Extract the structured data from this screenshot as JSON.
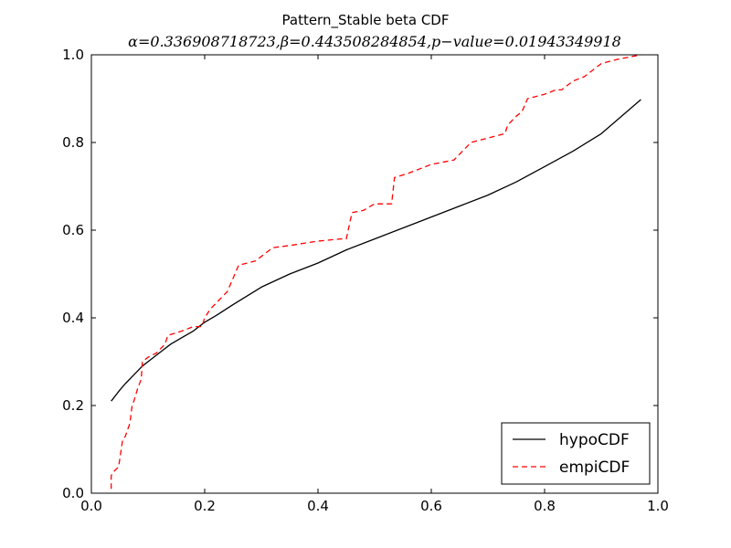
{
  "chart_data": {
    "type": "line",
    "title": "Pattern_Stable beta CDF",
    "subtitle": "α=0.336908718723,β=0.443508284854,p−value=0.01943349918",
    "xlabel": "",
    "ylabel": "",
    "xlim": [
      0.0,
      1.0
    ],
    "ylim": [
      0.0,
      1.0
    ],
    "x_ticks": [
      "0.0",
      "0.2",
      "0.4",
      "0.6",
      "0.8",
      "1.0"
    ],
    "y_ticks": [
      "0.0",
      "0.2",
      "0.4",
      "0.6",
      "0.8",
      "1.0"
    ],
    "grid": false,
    "legend_position": "bottom-right",
    "series": [
      {
        "name": "hypoCDF",
        "color": "#000000",
        "style": "solid",
        "x": [
          0.035,
          0.05,
          0.06,
          0.075,
          0.09,
          0.1,
          0.12,
          0.14,
          0.16,
          0.18,
          0.2,
          0.22,
          0.25,
          0.3,
          0.35,
          0.4,
          0.45,
          0.5,
          0.55,
          0.6,
          0.65,
          0.7,
          0.75,
          0.8,
          0.85,
          0.9,
          0.97
        ],
        "y": [
          0.21,
          0.235,
          0.25,
          0.27,
          0.29,
          0.3,
          0.32,
          0.34,
          0.355,
          0.37,
          0.39,
          0.405,
          0.43,
          0.47,
          0.5,
          0.525,
          0.555,
          0.58,
          0.605,
          0.63,
          0.655,
          0.68,
          0.71,
          0.745,
          0.78,
          0.82,
          0.898
        ]
      },
      {
        "name": "empiCDF",
        "color": "#ff0000",
        "style": "dashed",
        "x": [
          0.035,
          0.035,
          0.04,
          0.048,
          0.055,
          0.06,
          0.068,
          0.072,
          0.075,
          0.082,
          0.088,
          0.09,
          0.1,
          0.115,
          0.13,
          0.135,
          0.16,
          0.18,
          0.195,
          0.2,
          0.21,
          0.225,
          0.24,
          0.26,
          0.29,
          0.3,
          0.32,
          0.35,
          0.4,
          0.44,
          0.45,
          0.46,
          0.48,
          0.5,
          0.53,
          0.535,
          0.56,
          0.58,
          0.6,
          0.64,
          0.67,
          0.7,
          0.73,
          0.735,
          0.75,
          0.76,
          0.77,
          0.8,
          0.82,
          0.83,
          0.85,
          0.87,
          0.9,
          0.93,
          0.97
        ],
        "y": [
          0.01,
          0.04,
          0.05,
          0.06,
          0.12,
          0.13,
          0.16,
          0.2,
          0.21,
          0.24,
          0.26,
          0.3,
          0.31,
          0.32,
          0.34,
          0.36,
          0.37,
          0.38,
          0.38,
          0.4,
          0.42,
          0.44,
          0.46,
          0.52,
          0.53,
          0.54,
          0.56,
          0.565,
          0.575,
          0.58,
          0.58,
          0.64,
          0.645,
          0.66,
          0.66,
          0.72,
          0.73,
          0.74,
          0.75,
          0.76,
          0.8,
          0.81,
          0.82,
          0.84,
          0.86,
          0.87,
          0.9,
          0.91,
          0.92,
          0.92,
          0.94,
          0.95,
          0.98,
          0.99,
          1.0
        ]
      }
    ]
  }
}
